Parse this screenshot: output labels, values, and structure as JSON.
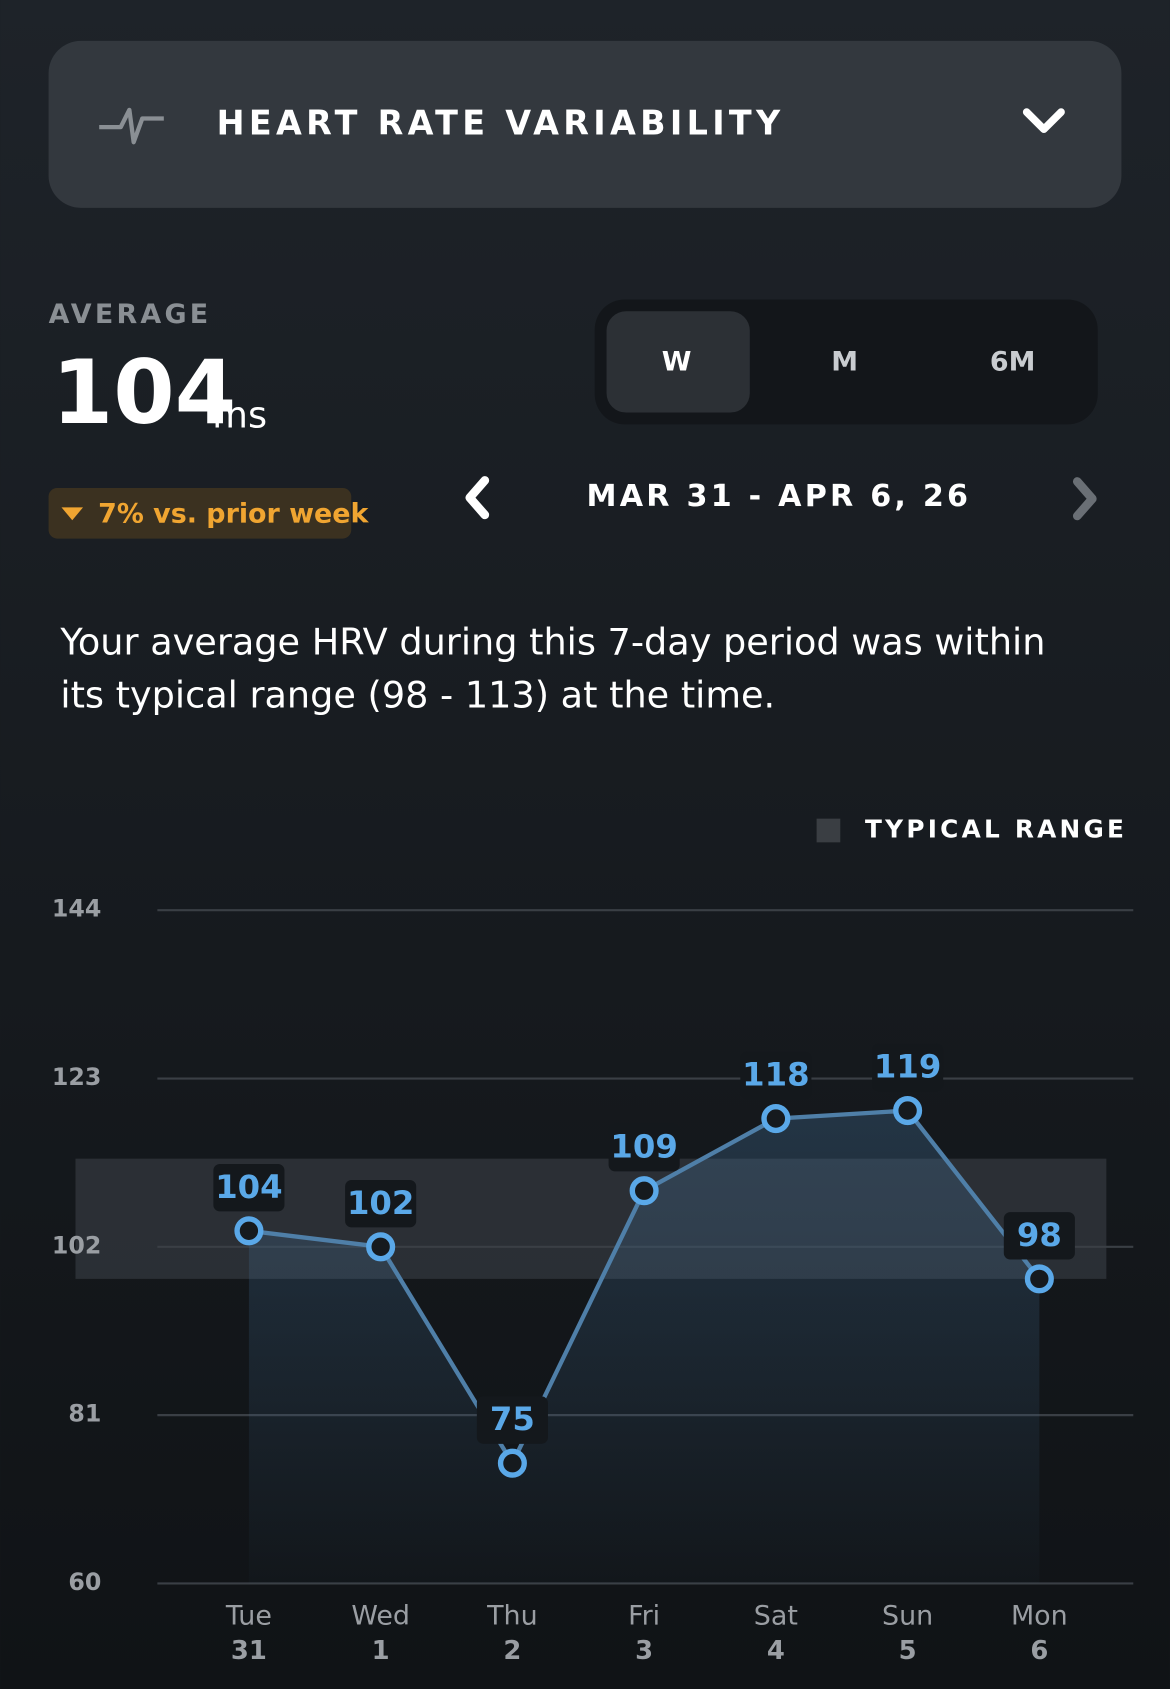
{
  "header": {
    "title": "HEART RATE VARIABILITY"
  },
  "summary": {
    "label": "AVERAGE",
    "value": "104",
    "unit": "ms",
    "change": "7% vs. prior week"
  },
  "tabs": [
    "W",
    "M",
    "6M"
  ],
  "date_range": "MAR 31 - APR 6, 26",
  "description": [
    "Your average HRV during this 7-day period was within",
    "its typical range (98 - 113) at the time."
  ],
  "chart_data": {
    "type": "line",
    "legend": "TYPICAL RANGE",
    "typical_range": [
      98,
      113
    ],
    "categories": [
      {
        "day": "Tue",
        "date": "31"
      },
      {
        "day": "Wed",
        "date": "1"
      },
      {
        "day": "Thu",
        "date": "2"
      },
      {
        "day": "Fri",
        "date": "3"
      },
      {
        "day": "Sat",
        "date": "4"
      },
      {
        "day": "Sun",
        "date": "5"
      },
      {
        "day": "Mon",
        "date": "6"
      }
    ],
    "values": [
      104,
      102,
      75,
      109,
      118,
      119,
      98
    ],
    "color": "#5aa8e8",
    "ylim": [
      60,
      144
    ],
    "yticks": [
      60,
      81,
      102,
      123,
      144
    ],
    "grid": true
  }
}
